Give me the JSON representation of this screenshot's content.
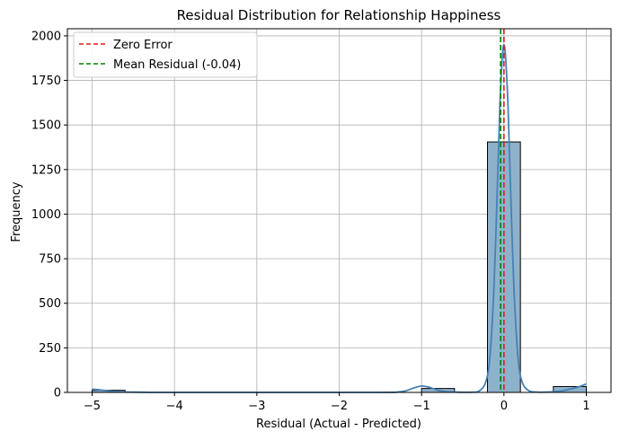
{
  "chart_data": {
    "type": "histogram",
    "title": "Residual Distribution for Relationship Happiness",
    "xlabel": "Residual (Actual - Predicted)",
    "ylabel": "Frequency",
    "xlim": [
      -5.3,
      1.3
    ],
    "ylim": [
      0,
      2040
    ],
    "xticks": [
      -5,
      -4,
      -3,
      -2,
      -1,
      0,
      1
    ],
    "xtick_labels": [
      "−5",
      "−4",
      "−3",
      "−2",
      "−1",
      "0",
      "1"
    ],
    "yticks": [
      0,
      250,
      500,
      750,
      1000,
      1250,
      1500,
      1750,
      2000
    ],
    "ytick_labels": [
      "0",
      "250",
      "500",
      "750",
      "1000",
      "1250",
      "1500",
      "1750",
      "2000"
    ],
    "grid": true,
    "bars": [
      {
        "x0": -5.0,
        "x1": -4.6,
        "value": 12
      },
      {
        "x0": -1.0,
        "x1": -0.6,
        "value": 22
      },
      {
        "x0": -0.2,
        "x1": 0.2,
        "value": 1405
      },
      {
        "x0": 0.6,
        "x1": 1.0,
        "value": 33
      }
    ],
    "bar_fill": "#8fb2cc",
    "bar_edge": "#000000",
    "kde": [
      [
        -5.0,
        18
      ],
      [
        -4.9,
        14
      ],
      [
        -4.8,
        8
      ],
      [
        -4.7,
        4
      ],
      [
        -4.6,
        2
      ],
      [
        -4.4,
        1
      ],
      [
        -4.0,
        0
      ],
      [
        -1.6,
        0
      ],
      [
        -1.3,
        2
      ],
      [
        -1.2,
        8
      ],
      [
        -1.1,
        24
      ],
      [
        -1.0,
        36
      ],
      [
        -0.9,
        28
      ],
      [
        -0.8,
        12
      ],
      [
        -0.7,
        4
      ],
      [
        -0.6,
        2
      ],
      [
        -0.4,
        1
      ],
      [
        -0.3,
        8
      ],
      [
        -0.22,
        60
      ],
      [
        -0.17,
        200
      ],
      [
        -0.12,
        600
      ],
      [
        -0.08,
        1150
      ],
      [
        -0.05,
        1600
      ],
      [
        -0.02,
        1880
      ],
      [
        0.0,
        1950
      ],
      [
        0.02,
        1880
      ],
      [
        0.05,
        1600
      ],
      [
        0.08,
        1150
      ],
      [
        0.12,
        600
      ],
      [
        0.17,
        200
      ],
      [
        0.22,
        60
      ],
      [
        0.3,
        10
      ],
      [
        0.4,
        2
      ],
      [
        0.6,
        3
      ],
      [
        0.7,
        8
      ],
      [
        0.8,
        18
      ],
      [
        0.9,
        30
      ],
      [
        1.0,
        48
      ]
    ],
    "kde_color": "#4682b4",
    "reference_lines": [
      {
        "x": 0.0,
        "color": "#e31a1c",
        "style": "dashed",
        "label": "Zero Error"
      },
      {
        "x": -0.04,
        "color": "#008000",
        "style": "dashed",
        "label": "Mean Residual (-0.04)"
      }
    ],
    "legend_placement": "top-left"
  }
}
